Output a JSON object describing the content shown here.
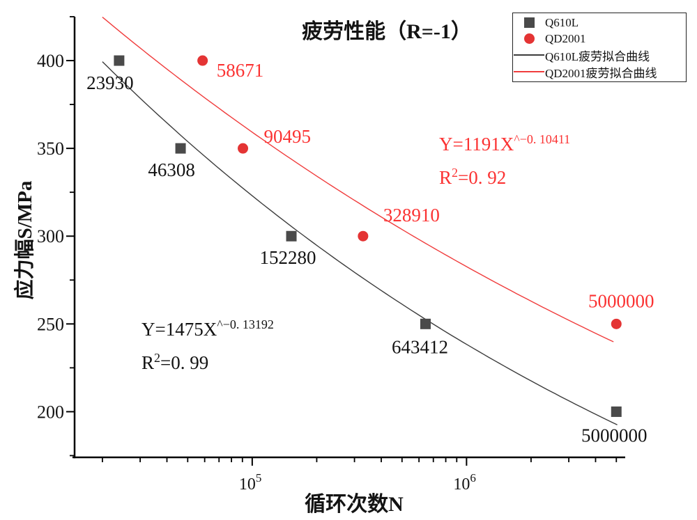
{
  "chart_data": {
    "type": "scatter",
    "title": "疲劳性能（R=-1）",
    "xlabel": "循环次数N",
    "ylabel": "应力幅S/MPa",
    "x_scale": "log10",
    "x_range": [
      14500,
      5500000
    ],
    "y_range": [
      174,
      425
    ],
    "grid": "off",
    "y_major_ticks": [
      400,
      350,
      300,
      250,
      200
    ],
    "y_minor_ticks": [
      425,
      375,
      325,
      275,
      225,
      175
    ],
    "x_major_ticks": [
      {
        "value": 100000,
        "label": "10",
        "exp": "5"
      },
      {
        "value": 1000000,
        "label": "10",
        "exp": "6"
      }
    ],
    "x_minor_ticks": [
      20000,
      30000,
      40000,
      50000,
      60000,
      70000,
      80000,
      90000,
      200000,
      300000,
      400000,
      500000,
      600000,
      700000,
      800000,
      900000,
      2000000,
      3000000,
      4000000,
      5000000
    ],
    "series": [
      {
        "name": "Q610L",
        "marker": "square",
        "color": "#4a4a4a",
        "label_color": "#131313",
        "points": [
          {
            "n": 23930,
            "s": 400,
            "label": "23930",
            "anchor": "middle",
            "dx": -13,
            "dy": 41
          },
          {
            "n": 46308,
            "s": 350,
            "label": "46308",
            "anchor": "middle",
            "dx": -13,
            "dy": 40
          },
          {
            "n": 152280,
            "s": 300,
            "label": "152280",
            "anchor": "middle",
            "dx": -5,
            "dy": 40
          },
          {
            "n": 643412,
            "s": 250,
            "label": "643412",
            "anchor": "middle",
            "dx": -8,
            "dy": 42
          },
          {
            "n": 5000000,
            "s": 200,
            "label": "5000000",
            "anchor": "middle",
            "dx": -3,
            "dy": 43
          }
        ]
      },
      {
        "name": "QD2001",
        "marker": "circle",
        "color": "#e43434",
        "label_color": "#fb3232",
        "points": [
          {
            "n": 58671,
            "s": 400,
            "label": "58671",
            "anchor": "start",
            "dx": 20,
            "dy": 23
          },
          {
            "n": 90495,
            "s": 350,
            "label": "90495",
            "anchor": "start",
            "dx": 30,
            "dy": -8
          },
          {
            "n": 328910,
            "s": 300,
            "label": "328910",
            "anchor": "start",
            "dx": 29,
            "dy": -21
          },
          {
            "n": 5000000,
            "s": 250,
            "label": "5000000",
            "anchor": "middle",
            "dx": 7,
            "dy": -24
          }
        ]
      }
    ],
    "fits": [
      {
        "name": "Q610L疲劳拟合曲线",
        "color": "#3c3c3c",
        "a": 1475,
        "b": -0.13192,
        "n_start": 20000,
        "n_end": 5050000
      },
      {
        "name": "QD2001疲劳拟合曲线",
        "color": "#f03c3c",
        "a": 1191,
        "b": -0.10411,
        "n_start": 20000,
        "n_end": 4850000
      }
    ],
    "annotations": {
      "black_eq": {
        "color": "#131313",
        "base": "Y=1475X",
        "exp": "^−0. 13192",
        "r2_base": "R",
        "r2_exp": "2",
        "r2_rest": "=0. 99"
      },
      "red_eq": {
        "color": "#fb3232",
        "base": "Y=1191X",
        "exp": "^−0. 10411",
        "r2_base": "R",
        "r2_exp": "2",
        "r2_rest": "=0. 92"
      }
    },
    "legend": {
      "position": "top-right",
      "entries": [
        {
          "label": "Q610L",
          "type": "square",
          "color": "#4a4a4a"
        },
        {
          "label": "QD2001",
          "type": "circle",
          "color": "#e43434"
        },
        {
          "label": "Q610L疲劳拟合曲线",
          "type": "line",
          "color": "#3c3c3c"
        },
        {
          "label": "QD2001疲劳拟合曲线",
          "type": "line",
          "color": "#f03c3c"
        }
      ]
    }
  }
}
